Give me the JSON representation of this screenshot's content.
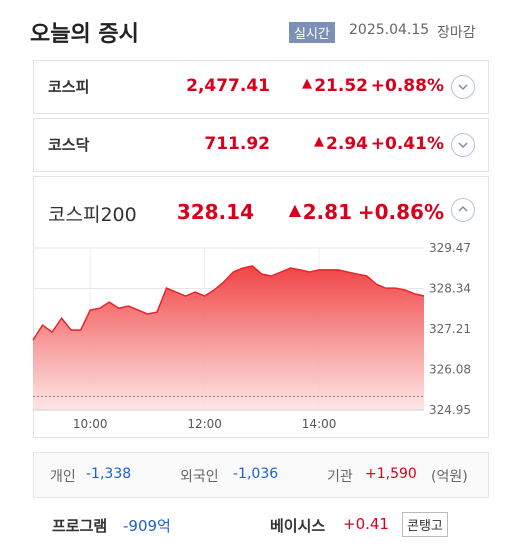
{
  "header": {
    "title": "오늘의 증시",
    "badge": "실시간",
    "date": "2025.04.15",
    "status": "장마감"
  },
  "indices": [
    {
      "name": "코스피",
      "value": "2,477.41",
      "change": "21.52",
      "rate": "+0.88%"
    },
    {
      "name": "코스닥",
      "value": "711.92",
      "change": "2.94",
      "rate": "+0.41%"
    },
    {
      "name": "코스피200",
      "value": "328.14",
      "change": "2.81",
      "rate": "+0.86%"
    }
  ],
  "chart_data": {
    "type": "area",
    "color": "#e8242f",
    "x": [
      "09:00",
      "09:10",
      "09:20",
      "09:30",
      "09:40",
      "09:50",
      "10:00",
      "10:10",
      "10:20",
      "10:30",
      "10:40",
      "10:50",
      "11:00",
      "11:10",
      "11:20",
      "11:30",
      "11:40",
      "11:50",
      "12:00",
      "12:10",
      "12:20",
      "12:30",
      "12:40",
      "12:50",
      "13:00",
      "13:10",
      "13:20",
      "13:30",
      "13:40",
      "13:50",
      "14:00",
      "14:10",
      "14:20",
      "14:30",
      "14:40",
      "14:50",
      "15:00",
      "15:10",
      "15:20",
      "15:30",
      "15:40",
      "15:50"
    ],
    "values": [
      326.9,
      327.32,
      327.12,
      327.51,
      327.18,
      327.18,
      327.74,
      327.79,
      327.96,
      327.79,
      327.85,
      327.74,
      327.63,
      327.68,
      328.35,
      328.24,
      328.13,
      328.24,
      328.13,
      328.3,
      328.52,
      328.8,
      328.91,
      328.97,
      328.74,
      328.69,
      328.8,
      328.91,
      328.86,
      328.8,
      328.86,
      328.86,
      328.86,
      328.8,
      328.74,
      328.69,
      328.46,
      328.35,
      328.35,
      328.3,
      328.19,
      328.13
    ],
    "base_value": 325.33,
    "xlim": [
      "09:00",
      "15:50"
    ],
    "xticks": [
      "10:00",
      "12:00",
      "14:00"
    ],
    "ylim": [
      324.95,
      329.47
    ],
    "yticks": [
      324.95,
      326.08,
      327.21,
      328.34,
      329.47
    ],
    "grid": true
  },
  "investors": {
    "items": [
      {
        "label": "개인",
        "value": "-1,338"
      },
      {
        "label": "외국인",
        "value": "-1,036"
      },
      {
        "label": "기관",
        "value": "+1,590"
      }
    ],
    "unit": "(억원)"
  },
  "program": {
    "label": "프로그램",
    "value": "-909억",
    "basis_label": "베이시스",
    "basis_value": "+0.41",
    "basis_state": "콘탱고"
  }
}
